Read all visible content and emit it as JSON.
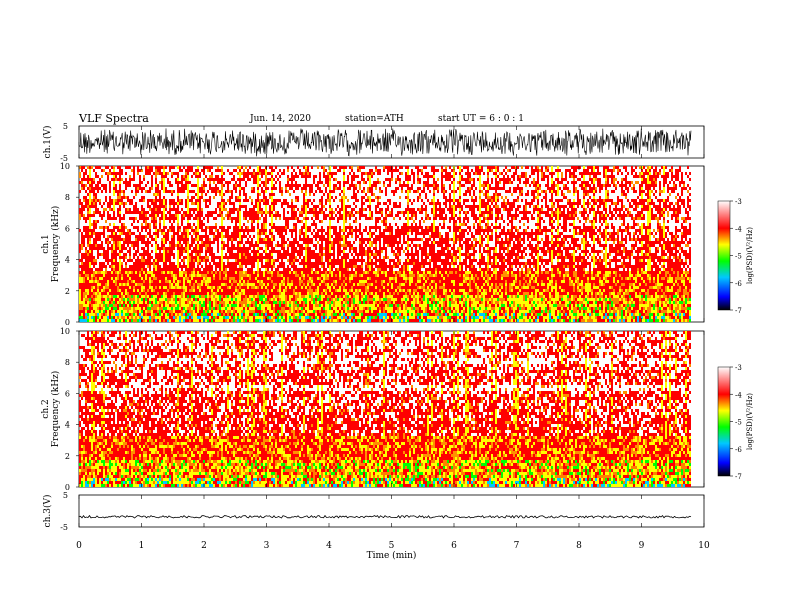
{
  "header": {
    "title": "VLF  Spectra",
    "date": "Jun. 14, 2020",
    "station": "station=ATH",
    "start_ut": "start  UT  =    6  : 0   : 1"
  },
  "chart_data": [
    {
      "type": "line",
      "panel": "ch1-waveform",
      "ylabel": "ch.1(V)",
      "yticks": [
        "5",
        "-5"
      ],
      "ylim": [
        -5,
        5
      ],
      "x_range_min": [
        0,
        9.8
      ],
      "description_of_signal": "dense noise",
      "color": "#000000"
    },
    {
      "type": "heatmap",
      "panel": "ch1-spectrogram",
      "ylabel": "ch.1\nFrequency  (kHz)",
      "yticks": [
        "0",
        "2",
        "4",
        "6",
        "8",
        "10"
      ],
      "ylim": [
        0,
        10
      ],
      "xlim": [
        0,
        10
      ],
      "colorbar": {
        "label": "log(PSD)(V²/Hz)",
        "ticks": [
          "-3",
          "-4",
          "-5",
          "-6",
          "-7"
        ],
        "range": [
          -7,
          -3
        ]
      }
    },
    {
      "type": "heatmap",
      "panel": "ch2-spectrogram",
      "ylabel": "ch.2\nFrequency  (kHz)",
      "yticks": [
        "0",
        "2",
        "4",
        "6",
        "8",
        "10"
      ],
      "ylim": [
        0,
        10
      ],
      "xlim": [
        0,
        10
      ],
      "colorbar": {
        "label": "log(PSD)(V²/Hz)",
        "ticks": [
          "-3",
          "-4",
          "-5",
          "-6",
          "-7"
        ],
        "range": [
          -7,
          -3
        ]
      }
    },
    {
      "type": "line",
      "panel": "ch3-waveform",
      "ylabel": "ch.3(V)",
      "yticks": [
        "5",
        "-5"
      ],
      "ylim": [
        -5,
        5
      ],
      "approx_level": -1.8,
      "color": "#000000"
    }
  ],
  "xaxis": {
    "label": "Time  (min)",
    "ticks": [
      "0",
      "1",
      "2",
      "3",
      "4",
      "5",
      "6",
      "7",
      "8",
      "9",
      "10"
    ],
    "xlim": [
      0,
      10
    ],
    "data_end": 9.8
  },
  "colors": {
    "spectrum_low": "#000000",
    "spectrum_blue": "#0000ff",
    "spectrum_green": "#00ff00",
    "spectrum_yellow": "#ffff00",
    "spectrum_red": "#ff0000",
    "spectrum_high": "#ffffff"
  }
}
